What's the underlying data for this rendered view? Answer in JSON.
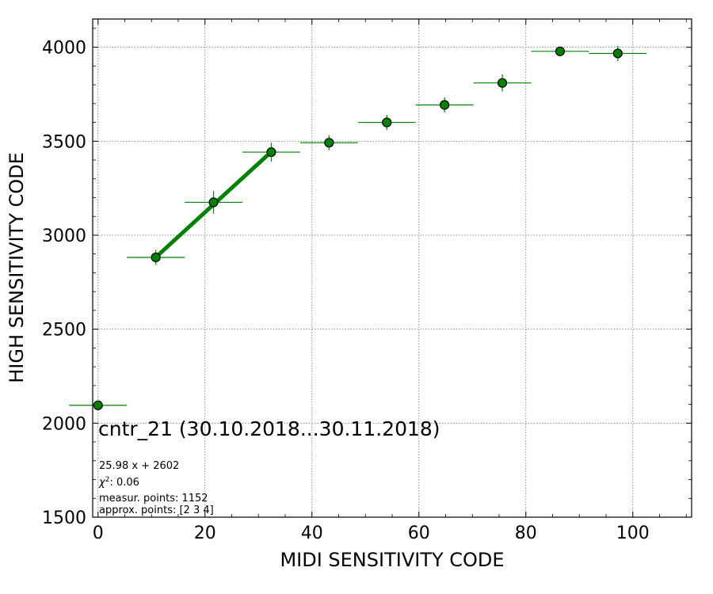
{
  "chart_data": {
    "type": "scatter",
    "xlabel": "MIDI SENSITIVITY CODE",
    "ylabel": "HIGH SENSITIVITY CODE",
    "xlim": [
      -1,
      111
    ],
    "ylim": [
      1500,
      4150
    ],
    "x_ticks": [
      0,
      20,
      40,
      60,
      80,
      100
    ],
    "y_ticks": [
      1500,
      2000,
      2500,
      3000,
      3500,
      4000
    ],
    "grid": true,
    "point_color": "#008000",
    "fit_color": "#008000",
    "points": [
      {
        "x": 0.0,
        "y": 2095,
        "xerr": 5.4,
        "yerr": 0
      },
      {
        "x": 10.8,
        "y": 2882,
        "xerr": 5.4,
        "yerr": 40
      },
      {
        "x": 21.6,
        "y": 3175,
        "xerr": 5.4,
        "yerr": 60
      },
      {
        "x": 32.4,
        "y": 3442,
        "xerr": 5.4,
        "yerr": 50
      },
      {
        "x": 43.2,
        "y": 3492,
        "xerr": 5.4,
        "yerr": 40
      },
      {
        "x": 54.0,
        "y": 3600,
        "xerr": 5.4,
        "yerr": 40
      },
      {
        "x": 64.8,
        "y": 3693,
        "xerr": 5.4,
        "yerr": 40
      },
      {
        "x": 75.6,
        "y": 3810,
        "xerr": 5.4,
        "yerr": 45
      },
      {
        "x": 86.4,
        "y": 3978,
        "xerr": 5.4,
        "yerr": 25
      },
      {
        "x": 97.2,
        "y": 3967,
        "xerr": 5.4,
        "yerr": 40
      }
    ],
    "fit": {
      "slope": 25.98,
      "intercept": 2602,
      "x_range": [
        10.8,
        32.4
      ]
    },
    "annotations": {
      "title": "cntr_21 (30.10.2018...30.11.2018)",
      "equation": "25.98 x + 2602",
      "chi2_symbol": "χ",
      "chi2_power": "2",
      "chi2_value": ": 0.06",
      "measur_points": "measur. points: 1152",
      "approx_points": "approx. points: [2 3 4]"
    }
  }
}
